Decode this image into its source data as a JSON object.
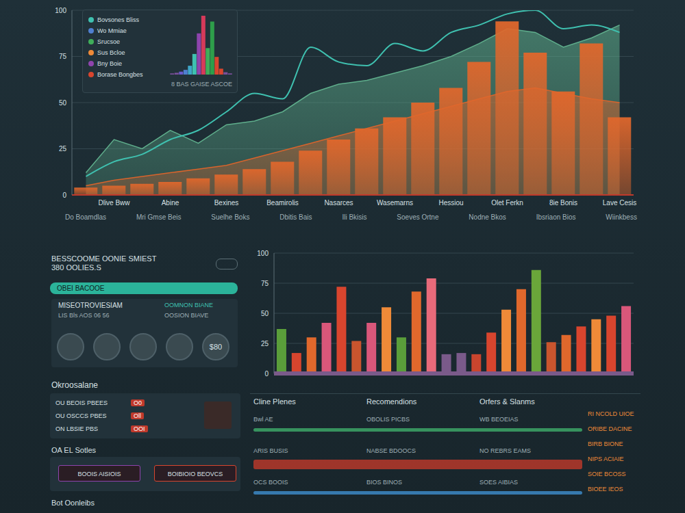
{
  "chart_data": [
    {
      "type": "bar",
      "categories": [
        null,
        "Dlive Bww",
        null,
        "Abine",
        null,
        "Bexines",
        null,
        "Beamirolis",
        null,
        "Nasarces",
        null,
        "Wasemarns",
        null,
        "Hessiou",
        null,
        "Olet Ferkn",
        null,
        "8ie Bonis",
        null,
        "Lave Cesis"
      ],
      "series": [
        {
          "type": "area",
          "color": "#5fae8c",
          "values": [
            12,
            30,
            25,
            35,
            28,
            38,
            40,
            45,
            55,
            60,
            62,
            66,
            70,
            75,
            82,
            90,
            88,
            80,
            85,
            92
          ]
        },
        {
          "type": "area",
          "color": "#d8642c",
          "values": [
            5,
            8,
            10,
            12,
            14,
            16,
            20,
            24,
            28,
            32,
            36,
            40,
            44,
            48,
            52,
            56,
            58,
            55,
            52,
            50
          ]
        },
        {
          "type": "bar",
          "color": "#e0672c",
          "values": [
            4,
            5,
            6,
            7,
            9,
            11,
            14,
            18,
            24,
            30,
            36,
            42,
            50,
            58,
            72,
            94,
            77,
            56,
            82,
            42
          ]
        },
        {
          "type": "line",
          "color": "#3fc1b0",
          "values": [
            10,
            18,
            22,
            30,
            35,
            45,
            55,
            52,
            80,
            72,
            70,
            82,
            78,
            88,
            92,
            98,
            100,
            90,
            92,
            88
          ]
        }
      ],
      "ylim": [
        0,
        100
      ],
      "yticks": [
        0,
        25,
        50,
        75,
        100
      ],
      "grid": true,
      "annotations": [
        "Do Boamdlas",
        "Mri Gmse Beis",
        "Suelhe Boks",
        "Dbitis Bais",
        "Ili Bkisis",
        "Soeves Ortne",
        "Nodne Bkos",
        "Ibsriaon Bios",
        "Wiinkbess"
      ]
    },
    {
      "type": "bar",
      "categories": [
        null,
        null,
        null,
        null,
        null,
        null,
        null,
        null,
        null,
        null,
        null,
        null,
        null,
        null
      ],
      "values": [
        2,
        3,
        5,
        8,
        15,
        35,
        70,
        100,
        45,
        90,
        30,
        10,
        4,
        2
      ],
      "colors": [
        "#7a4f9a",
        "#7a4f9a",
        "#6a5acd",
        "#4f7fd0",
        "#3fa7c9",
        "#3fc1b0",
        "#8e44ad",
        "#d63a5a",
        "#3fae5a",
        "#2e9e4a",
        "#d8452e",
        "#d8452e",
        "#7a4f9a",
        "#7a4f9a"
      ],
      "ylim": [
        0,
        100
      ],
      "tick_labels": false
    },
    {
      "type": "bar",
      "categories": [
        null,
        null,
        null,
        null,
        null,
        null,
        null,
        null,
        null,
        null,
        null,
        null,
        null,
        null,
        null,
        null,
        null,
        null,
        null,
        null,
        null,
        null,
        null,
        null
      ],
      "values": [
        37,
        17,
        30,
        42,
        72,
        27,
        42,
        55,
        30,
        68,
        79,
        16,
        17,
        16,
        34,
        53,
        70,
        86,
        26,
        32,
        39,
        45,
        48,
        56
      ],
      "colors": [
        "#5a9e3a",
        "#d8452e",
        "#e0682c",
        "#d9577a",
        "#d8452e",
        "#c9552e",
        "#d9577a",
        "#ef8a38",
        "#5a9e3a",
        "#e0682c",
        "#e86a7a",
        "#7a5a8a",
        "#7a5a8a",
        "#c9452e",
        "#d8452e",
        "#ef8a38",
        "#e0682c",
        "#6aa63a",
        "#c9552e",
        "#e0682c",
        "#d8452e",
        "#ef8a38",
        "#d8452e",
        "#d9577a"
      ],
      "ylim": [
        0,
        100
      ],
      "yticks": [
        0,
        25,
        50,
        75,
        100
      ],
      "grid": true,
      "tick_labels": "y"
    }
  ],
  "top_panel": {
    "items": [
      {
        "label": "Bovsones Bliss",
        "color": "#3fc1b0"
      },
      {
        "label": "Wo Mmiae",
        "color": "#4f7fd0"
      },
      {
        "label": "Srucsoe",
        "color": "#3fae5a"
      },
      {
        "label": "Sus Bcloe",
        "color": "#ef8a38"
      },
      {
        "label": "Bny Boie",
        "color": "#8e44ad"
      },
      {
        "label": "Borase Bongbes",
        "color": "#d8452e"
      }
    ],
    "caption": "8 BAS GAISE ASCOE"
  },
  "summary": {
    "title": "BESSCOOME OONIE SMIEST",
    "subtitle": "380 OOLIES.S",
    "button": "OBEI BACOOE"
  },
  "card": {
    "title": "MISEOTROVIESIAM",
    "title_right": "OOMNON BIANE",
    "line": "LIS Bls AOS 06 56",
    "line_right": "OOSION BIAVE",
    "badge": "$80"
  },
  "list_panel": {
    "title": "Okroosalane",
    "rows": [
      [
        "OU BEOIS PBEES",
        "O0"
      ],
      [
        "OU OSCCS PBES",
        "Oll"
      ],
      [
        "ON LBSIE PBS",
        "OOI"
      ]
    ]
  },
  "actions": {
    "title": "OA EL Sotles",
    "buttons": [
      "BOOIS AISIOIS",
      "BOIBIOIO BEOVCS"
    ]
  },
  "footer": "Bot Oonleibs",
  "tables": {
    "headers": [
      "Cline Plenes",
      "Recomendions",
      "Orfers & Slanms"
    ],
    "rows": [
      [
        "Bwl AE",
        "OBOLIS PICBS",
        "WB BEOEIAS"
      ],
      [
        "ARIS BUSIS",
        "NABSE BDOOCS",
        "NO REBRS EAMS"
      ],
      [
        "OCS BOOIS",
        "BIOS BINOS",
        "SOES AIBIAS"
      ]
    ],
    "side_list": [
      "RI NCOLD UIOE",
      "ORIBE DACINE",
      "BIRB BIONE",
      "NIPS ACIAIE",
      "SOIE BCOSS",
      "BIOEE IEOS"
    ]
  }
}
